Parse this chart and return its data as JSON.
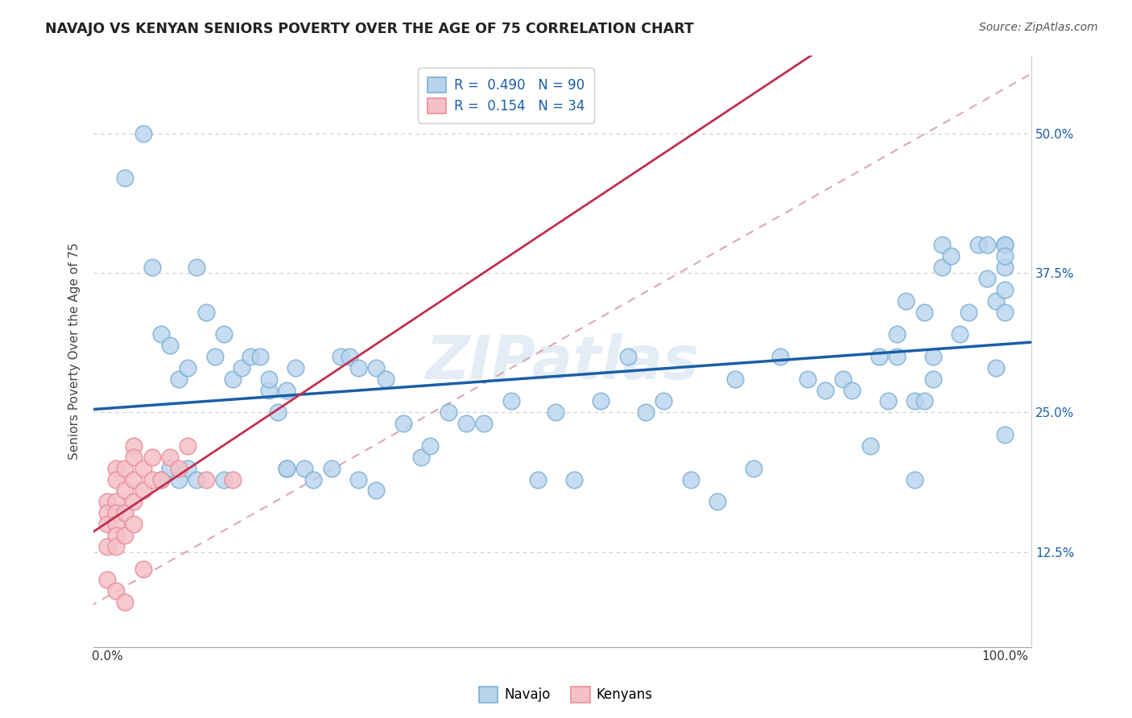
{
  "title": "NAVAJO VS KENYAN SENIORS POVERTY OVER THE AGE OF 75 CORRELATION CHART",
  "source": "Source: ZipAtlas.com",
  "ylabel": "Seniors Poverty Over the Age of 75",
  "watermark": "ZIPatlas",
  "navajo_color": "#7bafd4",
  "navajo_fill": "#b8d4ed",
  "kenyan_color": "#e8909a",
  "kenyan_fill": "#f5c0c8",
  "trend_navajo_color": "#1a5fa8",
  "trend_kenyan_color": "#c03050",
  "trend_dashed_color": "#d8a0a8",
  "navajo_R": "0.490",
  "navajo_N": "90",
  "kenyan_R": "0.154",
  "kenyan_N": "34",
  "navajo_x": [
    0.02,
    0.04,
    0.05,
    0.06,
    0.07,
    0.08,
    0.09,
    0.1,
    0.11,
    0.12,
    0.13,
    0.14,
    0.15,
    0.16,
    0.17,
    0.18,
    0.18,
    0.19,
    0.2,
    0.21,
    0.22,
    0.23,
    0.25,
    0.26,
    0.27,
    0.28,
    0.3,
    0.31,
    0.33,
    0.35,
    0.36,
    0.38,
    0.4,
    0.42,
    0.45,
    0.48,
    0.5,
    0.52,
    0.55,
    0.58,
    0.6,
    0.62,
    0.65,
    0.68,
    0.7,
    0.72,
    0.75,
    0.78,
    0.8,
    0.82,
    0.83,
    0.85,
    0.86,
    0.87,
    0.88,
    0.88,
    0.89,
    0.9,
    0.9,
    0.91,
    0.91,
    0.92,
    0.92,
    0.93,
    0.93,
    0.94,
    0.95,
    0.96,
    0.97,
    0.98,
    0.98,
    0.99,
    0.99,
    1.0,
    1.0,
    1.0,
    1.0,
    1.0,
    1.0,
    1.0,
    0.06,
    0.07,
    0.08,
    0.09,
    0.1,
    0.13,
    0.2,
    0.2,
    0.28,
    0.3
  ],
  "navajo_y": [
    0.46,
    0.5,
    0.38,
    0.32,
    0.31,
    0.28,
    0.29,
    0.38,
    0.34,
    0.3,
    0.32,
    0.28,
    0.29,
    0.3,
    0.3,
    0.27,
    0.28,
    0.25,
    0.27,
    0.29,
    0.2,
    0.19,
    0.2,
    0.3,
    0.3,
    0.29,
    0.29,
    0.28,
    0.24,
    0.21,
    0.22,
    0.25,
    0.24,
    0.24,
    0.26,
    0.19,
    0.25,
    0.19,
    0.26,
    0.3,
    0.25,
    0.26,
    0.19,
    0.17,
    0.28,
    0.2,
    0.3,
    0.28,
    0.27,
    0.28,
    0.27,
    0.22,
    0.3,
    0.26,
    0.3,
    0.32,
    0.35,
    0.19,
    0.26,
    0.26,
    0.34,
    0.28,
    0.3,
    0.38,
    0.4,
    0.39,
    0.32,
    0.34,
    0.4,
    0.4,
    0.37,
    0.29,
    0.35,
    0.4,
    0.38,
    0.34,
    0.36,
    0.4,
    0.39,
    0.23,
    0.19,
    0.2,
    0.19,
    0.2,
    0.19,
    0.19,
    0.2,
    0.2,
    0.19,
    0.18
  ],
  "kenyan_x": [
    0.0,
    0.0,
    0.0,
    0.0,
    0.0,
    0.01,
    0.01,
    0.01,
    0.01,
    0.01,
    0.01,
    0.01,
    0.01,
    0.02,
    0.02,
    0.02,
    0.02,
    0.02,
    0.03,
    0.03,
    0.03,
    0.03,
    0.03,
    0.04,
    0.04,
    0.04,
    0.05,
    0.05,
    0.06,
    0.07,
    0.08,
    0.09,
    0.11,
    0.14
  ],
  "kenyan_y": [
    0.17,
    0.16,
    0.15,
    0.13,
    0.1,
    0.2,
    0.19,
    0.17,
    0.16,
    0.15,
    0.14,
    0.13,
    0.09,
    0.2,
    0.18,
    0.16,
    0.14,
    0.08,
    0.22,
    0.21,
    0.19,
    0.17,
    0.15,
    0.2,
    0.18,
    0.11,
    0.21,
    0.19,
    0.19,
    0.21,
    0.2,
    0.22,
    0.19,
    0.19
  ],
  "xlim": [
    -0.015,
    1.03
  ],
  "ylim": [
    0.04,
    0.57
  ],
  "figsize": [
    14.06,
    8.92
  ],
  "dpi": 100
}
